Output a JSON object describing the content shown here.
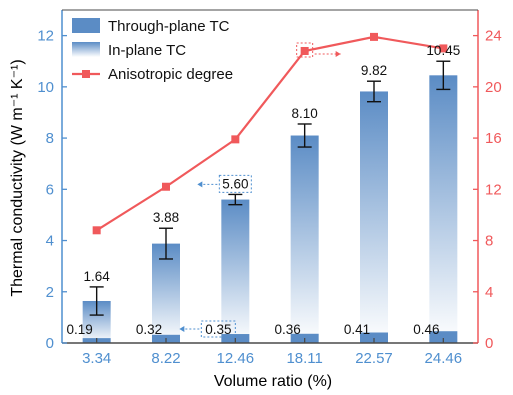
{
  "chart_data": {
    "type": "bar",
    "categories": [
      "3.34",
      "8.22",
      "12.46",
      "18.11",
      "22.57",
      "24.46"
    ],
    "xlabel": "Volume ratio (%)",
    "ylabel": "Thermal conductivity (W m⁻¹ K⁻¹)",
    "ylim": [
      0,
      13
    ],
    "yticks": [
      0,
      2,
      4,
      6,
      8,
      10,
      12
    ],
    "y2lim": [
      0,
      26
    ],
    "y2ticks": [
      0,
      4,
      8,
      12,
      16,
      20,
      24
    ],
    "legend_position": "top-left",
    "grid": false,
    "series": [
      {
        "name": "Through-plane TC",
        "kind": "bar",
        "axis": "left",
        "values": [
          0.19,
          0.32,
          0.35,
          0.36,
          0.41,
          0.46
        ],
        "labels": [
          "0.19",
          "0.32",
          "0.35",
          "0.36",
          "0.41",
          "0.46"
        ],
        "color": "#5b8cc5"
      },
      {
        "name": "In-plane TC",
        "kind": "bar",
        "axis": "left",
        "values": [
          1.64,
          3.88,
          5.6,
          8.1,
          9.82,
          10.45
        ],
        "labels": [
          "1.64",
          "3.88",
          "5.60",
          "8.10",
          "9.82",
          "10.45"
        ],
        "errors": [
          0.55,
          0.6,
          0.2,
          0.45,
          0.4,
          0.55
        ],
        "color": "#6b9bd0"
      },
      {
        "name": "Anisotropic degree",
        "kind": "line",
        "axis": "right",
        "values": [
          8.8,
          12.2,
          15.9,
          22.8,
          23.9,
          23.0
        ],
        "color": "#f0595b"
      }
    ]
  },
  "colors": {
    "left_axis": "#4f8fcf",
    "right_axis": "#f0595b",
    "annotation_blue": "#4f8fcf",
    "annotation_red": "#f0595b"
  }
}
